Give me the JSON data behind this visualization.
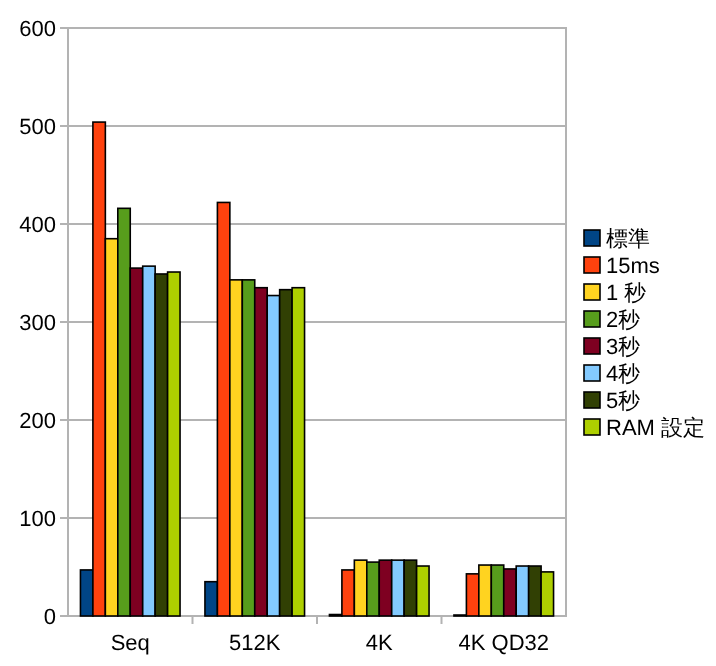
{
  "chart_data": {
    "type": "bar",
    "categories": [
      "Seq",
      "512K",
      "4K",
      "4K QD32"
    ],
    "series": [
      {
        "name": "標準",
        "color": "#004586",
        "values": [
          47,
          35,
          1.5,
          1
        ]
      },
      {
        "name": "15ms",
        "color": "#ff420e",
        "values": [
          504,
          422,
          47,
          43
        ]
      },
      {
        "name": "1 秒",
        "color": "#ffd320",
        "values": [
          385,
          343,
          57,
          52
        ]
      },
      {
        "name": "2秒",
        "color": "#579d1c",
        "values": [
          416,
          343,
          55,
          52
        ]
      },
      {
        "name": "3秒",
        "color": "#7e0021",
        "values": [
          355,
          335,
          57,
          48
        ]
      },
      {
        "name": "4秒",
        "color": "#83caff",
        "values": [
          357,
          327,
          57,
          51
        ]
      },
      {
        "name": "5秒",
        "color": "#314004",
        "values": [
          349,
          333,
          57,
          51
        ]
      },
      {
        "name": "RAM 設定",
        "color": "#aecf00",
        "values": [
          351,
          335,
          51,
          45
        ]
      }
    ],
    "ylim": [
      0,
      600
    ],
    "yticks": [
      0,
      100,
      200,
      300,
      400,
      500,
      600
    ],
    "grid": "y",
    "legend": "right"
  }
}
